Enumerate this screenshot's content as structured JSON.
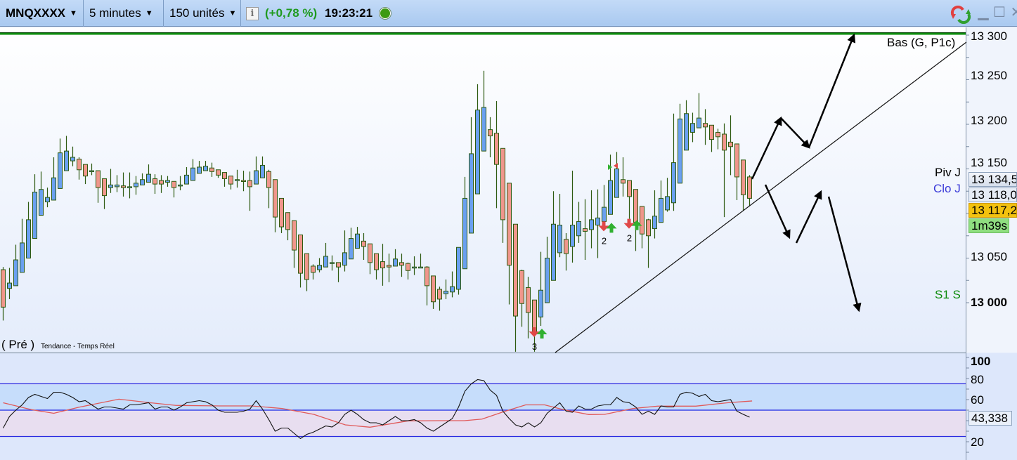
{
  "toolbar": {
    "symbol": "MNQXXXX",
    "timeframe": "5 minutes",
    "units": "150 unités",
    "change": "(+0,78 %)",
    "time": "19:23:21",
    "status_color": "#3d9a10",
    "icons": [
      "info-icon",
      "refresh-icon",
      "minimize-icon",
      "maximize-icon",
      "close-icon"
    ]
  },
  "colors": {
    "bullish": "#6aa0f0",
    "bearish": "#f0968c",
    "wick": "#2d5a10",
    "pivot": "#000000",
    "close_line": "#3a3ad8",
    "support": "#0a8a0a",
    "rsi": "#111111",
    "rsi_signal": "#e05a5a",
    "rsi_band": "#2a2ae0"
  },
  "price_chart": {
    "y_axis_ticks": [
      "13 300",
      "13 250",
      "13 200",
      "13 150",
      "13 050",
      "13 000"
    ],
    "y_range": [
      12945,
      13302
    ],
    "levels": [
      {
        "name": "Bas (G, P1c)",
        "price": 13302,
        "style": "solid"
      },
      {
        "name": "Piv J",
        "price": 13134.5,
        "style": "solid"
      },
      {
        "name": "Clo J",
        "price": 13118,
        "style": "dashed"
      },
      {
        "name": "S1 S",
        "price": 13000,
        "style": "solid"
      }
    ],
    "boxes": {
      "pivot_value": "13 134,5",
      "close_value": "13 118,0",
      "last_value": "13 117,2",
      "countdown": "1m39s"
    },
    "indicator_title": "( Pré )",
    "indicator_subtitle": "Tendance - Temps Réel",
    "signals": [
      {
        "bar": 84,
        "count": "3"
      },
      {
        "bar": 95,
        "count": "2"
      },
      {
        "bar": 99,
        "count": "2"
      }
    ],
    "candles_ohlc": [
      [
        13037,
        13040,
        12980,
        12995
      ],
      [
        13016,
        13039,
        13004,
        13022
      ],
      [
        13019,
        13065,
        13019,
        13048
      ],
      [
        13034,
        13094,
        13034,
        13067
      ],
      [
        13050,
        13113,
        13050,
        13093
      ],
      [
        13072,
        13144,
        13072,
        13124
      ],
      [
        13098,
        13147,
        13098,
        13127
      ],
      [
        13113,
        13129,
        13107,
        13118
      ],
      [
        13115,
        13163,
        13115,
        13140
      ],
      [
        13128,
        13184,
        13128,
        13168
      ],
      [
        13148,
        13187,
        13148,
        13170
      ],
      [
        13159,
        13175,
        13153,
        13163
      ],
      [
        13161,
        13163,
        13138,
        13149
      ],
      [
        13155,
        13155,
        13133,
        13142
      ],
      [
        13148,
        13156,
        13143,
        13148
      ],
      [
        13148,
        13148,
        13112,
        13129
      ],
      [
        13139,
        13139,
        13105,
        13120
      ],
      [
        13129,
        13150,
        13123,
        13132
      ],
      [
        13130,
        13143,
        13124,
        13132
      ],
      [
        13131,
        13146,
        13119,
        13129
      ],
      [
        13130,
        13146,
        13117,
        13130
      ],
      [
        13130,
        13142,
        13121,
        13134
      ],
      [
        13132,
        13145,
        13132,
        13138
      ],
      [
        13135,
        13155,
        13135,
        13144
      ],
      [
        13139,
        13144,
        13122,
        13133
      ],
      [
        13137,
        13143,
        13123,
        13133
      ],
      [
        13135,
        13142,
        13130,
        13137
      ],
      [
        13136,
        13136,
        13118,
        13129
      ],
      [
        13132,
        13142,
        13126,
        13132
      ],
      [
        13133,
        13152,
        13133,
        13143
      ],
      [
        13137,
        13161,
        13137,
        13151
      ],
      [
        13145,
        13159,
        13145,
        13152
      ],
      [
        13148,
        13159,
        13148,
        13153
      ],
      [
        13151,
        13157,
        13141,
        13147
      ],
      [
        13149,
        13149,
        13140,
        13143
      ],
      [
        13146,
        13146,
        13130,
        13139
      ],
      [
        13142,
        13142,
        13127,
        13133
      ],
      [
        13138,
        13149,
        13129,
        13138
      ],
      [
        13137,
        13148,
        13125,
        13136
      ],
      [
        13137,
        13147,
        13103,
        13130
      ],
      [
        13133,
        13164,
        13133,
        13148
      ],
      [
        13140,
        13164,
        13140,
        13154
      ],
      [
        13147,
        13149,
        13106,
        13129
      ],
      [
        13138,
        13138,
        13079,
        13096
      ],
      [
        13117,
        13117,
        13078,
        13085
      ],
      [
        13101,
        13101,
        13070,
        13082
      ],
      [
        13092,
        13092,
        13039,
        13059
      ],
      [
        13076,
        13076,
        13017,
        13033
      ],
      [
        13055,
        13055,
        13013,
        13026
      ],
      [
        13041,
        13043,
        13026,
        13034
      ],
      [
        13037,
        13050,
        13034,
        13042
      ],
      [
        13040,
        13067,
        13040,
        13052
      ],
      [
        13045,
        13053,
        13036,
        13045
      ],
      [
        13045,
        13045,
        13023,
        13040
      ],
      [
        13042,
        13081,
        13035,
        13056
      ],
      [
        13049,
        13084,
        13049,
        13072
      ],
      [
        13061,
        13085,
        13061,
        13077
      ],
      [
        13069,
        13078,
        13048,
        13063
      ],
      [
        13066,
        13066,
        13032,
        13045
      ],
      [
        13055,
        13055,
        13026,
        13037
      ],
      [
        13046,
        13066,
        13019,
        13039
      ],
      [
        13042,
        13055,
        13023,
        13040
      ],
      [
        13041,
        13060,
        13041,
        13049
      ],
      [
        13045,
        13055,
        13029,
        13042
      ],
      [
        13044,
        13045,
        13026,
        13036
      ],
      [
        13040,
        13052,
        13031,
        13040
      ],
      [
        13040,
        13055,
        13040,
        13040
      ],
      [
        13040,
        13041,
        12997,
        13019
      ],
      [
        13030,
        13030,
        12993,
        13001
      ],
      [
        13015,
        13018,
        12991,
        13004
      ],
      [
        13010,
        13026,
        13004,
        13013
      ],
      [
        13012,
        13035,
        13006,
        13018
      ],
      [
        13015,
        13062,
        13009,
        13062
      ],
      [
        13038,
        13141,
        13038,
        13117
      ],
      [
        13078,
        13208,
        13078,
        13167
      ],
      [
        13122,
        13245,
        13122,
        13216
      ],
      [
        13170,
        13260,
        13170,
        13219
      ],
      [
        13194,
        13208,
        13163,
        13187
      ],
      [
        13190,
        13226,
        13106,
        13155
      ],
      [
        13173,
        13173,
        13067,
        13093
      ],
      [
        13134,
        13134,
        12998,
        13042
      ],
      [
        13088,
        13088,
        12945,
        12985
      ],
      [
        13036,
        13037,
        12973,
        12999
      ],
      [
        13017,
        13029,
        12960,
        12989
      ],
      [
        13003,
        13003,
        12945,
        12965
      ],
      [
        12984,
        13057,
        12974,
        13014
      ],
      [
        13000,
        13074,
        13000,
        13050
      ],
      [
        13025,
        13125,
        13025,
        13088
      ],
      [
        13056,
        13122,
        13051,
        13087
      ],
      [
        13071,
        13078,
        13036,
        13055
      ],
      [
        13063,
        13148,
        13045,
        13087
      ],
      [
        13075,
        13113,
        13067,
        13091
      ],
      [
        13083,
        13116,
        13048,
        13080
      ],
      [
        13082,
        13126,
        13061,
        13093
      ],
      [
        13087,
        13127,
        13050,
        13095
      ],
      [
        13091,
        13132,
        13091,
        13107
      ],
      [
        13099,
        13166,
        13099,
        13137
      ],
      [
        13118,
        13169,
        13118,
        13150
      ],
      [
        13138,
        13163,
        13119,
        13134
      ],
      [
        13137,
        13137,
        13094,
        13119
      ],
      [
        13127,
        13127,
        13058,
        13090
      ],
      [
        13108,
        13108,
        13061,
        13077
      ],
      [
        13093,
        13094,
        13039,
        13075
      ],
      [
        13083,
        13126,
        13072,
        13097
      ],
      [
        13090,
        13137,
        13090,
        13117
      ],
      [
        13104,
        13140,
        13102,
        13119
      ],
      [
        13112,
        13212,
        13103,
        13157
      ],
      [
        13134,
        13223,
        13134,
        13206
      ],
      [
        13171,
        13227,
        13171,
        13212
      ],
      [
        13191,
        13213,
        13180,
        13201
      ],
      [
        13196,
        13235,
        13196,
        13207
      ],
      [
        13201,
        13217,
        13177,
        13197
      ],
      [
        13199,
        13199,
        13169,
        13183
      ],
      [
        13191,
        13195,
        13172,
        13186
      ],
      [
        13189,
        13201,
        13096,
        13171
      ],
      [
        13180,
        13210,
        13143,
        13175
      ],
      [
        13178,
        13178,
        13115,
        13141
      ],
      [
        13160,
        13160,
        13103,
        13121
      ],
      [
        13141,
        13143,
        13108,
        13117
      ]
    ]
  },
  "oscillator": {
    "y_axis_ticks": [
      "100",
      "80",
      "60",
      "20"
    ],
    "y_range": [
      0,
      100
    ],
    "bands": [
      25,
      50,
      75
    ],
    "current_value": "43,338",
    "values": [
      33,
      44,
      50,
      55,
      62,
      65,
      63,
      61,
      67,
      67,
      65,
      62,
      58,
      59,
      55,
      51,
      53,
      53,
      52,
      51,
      55,
      55,
      56,
      57,
      51,
      53,
      53,
      50,
      53,
      57,
      58,
      59,
      58,
      55,
      50,
      48,
      48,
      48,
      49,
      51,
      59,
      51,
      41,
      30,
      33,
      33,
      28,
      23,
      27,
      29,
      32,
      35,
      34,
      38,
      46,
      50,
      46,
      41,
      38,
      38,
      36,
      40,
      44,
      40,
      40,
      41,
      38,
      33,
      30,
      34,
      38,
      42,
      53,
      68,
      75,
      79,
      78,
      69,
      64,
      49,
      42,
      36,
      34,
      38,
      34,
      38,
      47,
      52,
      57,
      49,
      48,
      54,
      51,
      51,
      54,
      55,
      55,
      62,
      58,
      57,
      53,
      46,
      49,
      46,
      54,
      53,
      53,
      65,
      67,
      66,
      63,
      65,
      59,
      58,
      59,
      60,
      49,
      46,
      43.3
    ],
    "signal": [
      [
        0,
        57
      ],
      [
        4.5,
        50.4
      ],
      [
        8,
        47
      ],
      [
        11.9,
        52.7
      ],
      [
        18.3,
        60.4
      ],
      [
        23.3,
        57
      ],
      [
        27.3,
        54.5
      ],
      [
        34.2,
        54
      ],
      [
        39.2,
        54
      ],
      [
        44.1,
        51.6
      ],
      [
        49.1,
        46
      ],
      [
        54.1,
        36
      ],
      [
        58,
        33.8
      ],
      [
        64,
        39.8
      ],
      [
        69,
        40
      ],
      [
        72.9,
        40
      ],
      [
        75.7,
        41.5
      ],
      [
        79.2,
        48.7
      ],
      [
        82.6,
        55
      ],
      [
        85.6,
        55
      ],
      [
        88.6,
        50.4
      ],
      [
        92.6,
        45.8
      ],
      [
        95.1,
        46
      ],
      [
        99.6,
        51.6
      ],
      [
        103.5,
        53.8
      ],
      [
        109.5,
        53.8
      ],
      [
        114.5,
        57
      ],
      [
        118.4,
        58.7
      ]
    ]
  }
}
